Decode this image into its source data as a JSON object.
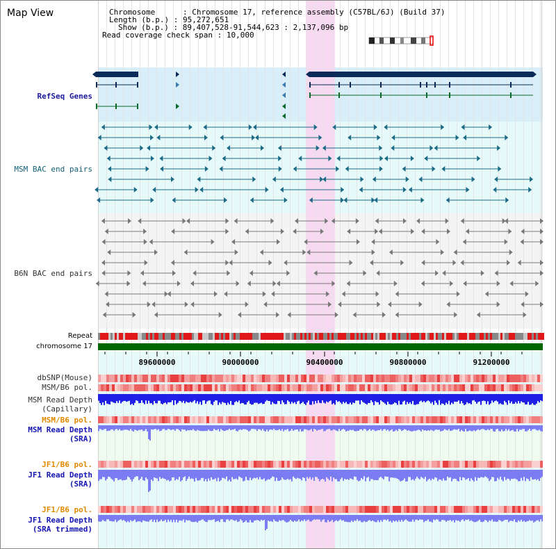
{
  "title": "Map View",
  "info": {
    "chromosome_key": "Chromosome",
    "chromosome_val": "Chromosome 17, reference assembly (C57BL/6J) (Build 37)",
    "length_key": "Length (b.p.)",
    "length_val": "95,272,651",
    "show_key": "Show (b.p.)",
    "show_val": "89,407,528-91,544,623 : 2,137,096 bp",
    "coverage_key": "Read coverage check span",
    "coverage_val": "10,000"
  },
  "tracks": {
    "refseq": "RefSeq Genes",
    "msm_bac": "MSM BAC end pairs",
    "b6n_bac": "B6N BAC end pairs",
    "repeat": "Repeat",
    "chromosome": "chromosome 17",
    "dbsnp": "dbSNP(Mouse)",
    "msm_b6_pol_1": "MSM/B6 pol.",
    "msm_depth_cap_1": "MSM Read Depth",
    "msm_depth_cap_2": "(Capillary)",
    "msm_b6_pol_2": "MSM/B6 pol.",
    "msm_depth_sra_1": "MSM Read Depth",
    "msm_depth_sra_2": "(SRA)",
    "jf1_b6_pol_1": "JF1/B6 pol.",
    "jf1_depth_sra_1": "JF1 Read Depth",
    "jf1_depth_sra_2": "(SRA)",
    "jf1_b6_pol_2": "JF1/B6 pol.",
    "jf1_depth_trim_1": "JF1 Read Depth",
    "jf1_depth_trim_2": "(SRA trimmed)"
  },
  "axis_ticks": [
    "89600000",
    "90000000",
    "90400000",
    "90800000",
    "91200000"
  ],
  "colors": {
    "refseq_bg": "#d8eef8",
    "bac_bg": "#e6fafa",
    "highlight": "#f7d9f2",
    "gene": "#0a2a5a",
    "bac_teal": "#1c6a86",
    "bac_gray": "#777777",
    "chromosome_bar": "#006600",
    "depth_blue": "#1f1fe6",
    "depth_light": "#7b7bf2"
  }
}
